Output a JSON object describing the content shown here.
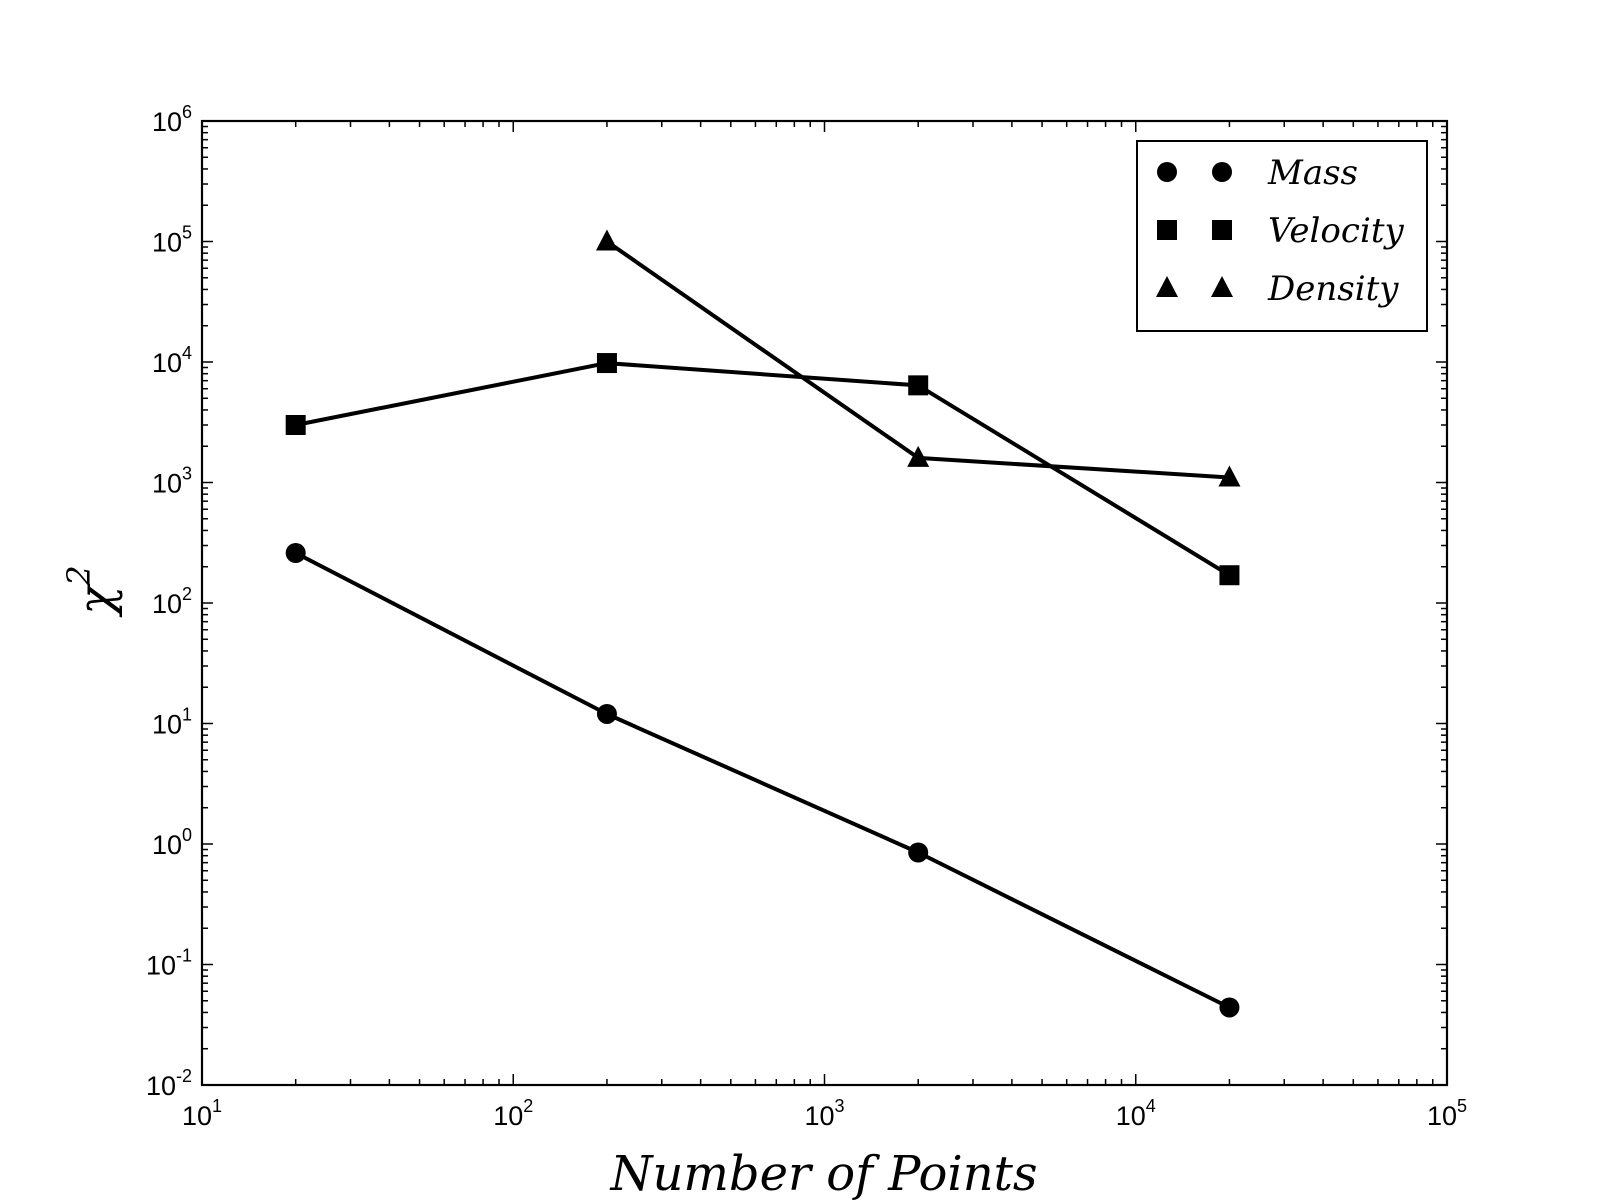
{
  "chart_data": {
    "type": "line",
    "xlabel": "Number of Points",
    "ylabel": "χ",
    "ylabel_superscript": "2",
    "xscale": "log",
    "yscale": "log",
    "xlim": [
      10,
      100000
    ],
    "ylim": [
      0.01,
      1000000
    ],
    "grid": false,
    "legend_position": "top-right",
    "x_ticks": [
      {
        "value": 10,
        "base": "10",
        "exp": "1"
      },
      {
        "value": 100,
        "base": "10",
        "exp": "2"
      },
      {
        "value": 1000,
        "base": "10",
        "exp": "3"
      },
      {
        "value": 10000,
        "base": "10",
        "exp": "4"
      },
      {
        "value": 100000,
        "base": "10",
        "exp": "5"
      }
    ],
    "y_ticks": [
      {
        "value": 0.01,
        "base": "10",
        "exp": "-2"
      },
      {
        "value": 0.1,
        "base": "10",
        "exp": "-1"
      },
      {
        "value": 1,
        "base": "10",
        "exp": "0"
      },
      {
        "value": 10,
        "base": "10",
        "exp": "1"
      },
      {
        "value": 100,
        "base": "10",
        "exp": "2"
      },
      {
        "value": 1000,
        "base": "10",
        "exp": "3"
      },
      {
        "value": 10000,
        "base": "10",
        "exp": "4"
      },
      {
        "value": 100000,
        "base": "10",
        "exp": "5"
      },
      {
        "value": 1000000,
        "base": "10",
        "exp": "6"
      }
    ],
    "series": [
      {
        "name": "Mass",
        "marker": "circle",
        "x": [
          20,
          200,
          2000,
          20000
        ],
        "y": [
          260,
          12,
          0.85,
          0.044
        ]
      },
      {
        "name": "Velocity",
        "marker": "square",
        "x": [
          20,
          200,
          2000,
          20000
        ],
        "y": [
          3000,
          9800,
          6400,
          170
        ]
      },
      {
        "name": "Density",
        "marker": "triangle",
        "x": [
          200,
          2000,
          20000
        ],
        "y": [
          100000,
          1600,
          1100
        ]
      }
    ],
    "colors": {
      "line": "#000000",
      "marker": "#000000"
    }
  }
}
